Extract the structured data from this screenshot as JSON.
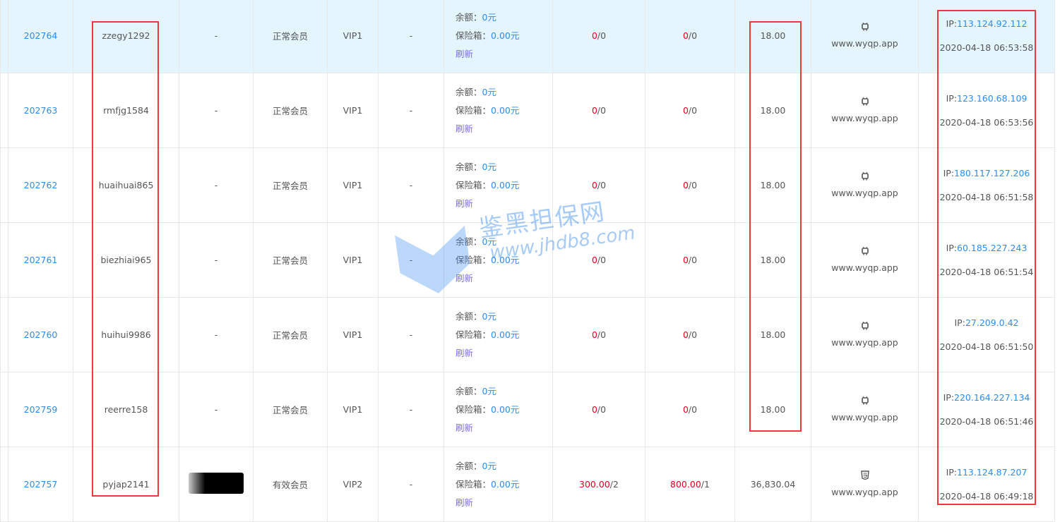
{
  "rows": [
    {
      "id": "202764",
      "username": "zzegy1292",
      "nickname": "-",
      "status": "正常会员",
      "level": "VIP1",
      "extra": "-",
      "balance_label": "余额：",
      "balance": "0元",
      "safe_label": "保险箱：",
      "safe": "0.00元",
      "refresh": "刷新",
      "recharge_red": "0",
      "recharge_rest": "/0",
      "withdraw_red": "0",
      "withdraw_rest": "/0",
      "amount": "18.00",
      "device_icon": "android-icon",
      "device_site": "www.wyqp.app",
      "ip_label": "IP:",
      "ip": "113.124.92.112",
      "time": "2020-04-18 06:53:58",
      "highlight": true
    },
    {
      "id": "202763",
      "username": "rmfjg1584",
      "nickname": "-",
      "status": "正常会员",
      "level": "VIP1",
      "extra": "-",
      "balance_label": "余额：",
      "balance": "0元",
      "safe_label": "保险箱：",
      "safe": "0.00元",
      "refresh": "刷新",
      "recharge_red": "0",
      "recharge_rest": "/0",
      "withdraw_red": "0",
      "withdraw_rest": "/0",
      "amount": "18.00",
      "device_icon": "android-icon",
      "device_site": "www.wyqp.app",
      "ip_label": "IP:",
      "ip": "123.160.68.109",
      "time": "2020-04-18 06:53:56"
    },
    {
      "id": "202762",
      "username": "huaihuai865",
      "nickname": "-",
      "status": "正常会员",
      "level": "VIP1",
      "extra": "-",
      "balance_label": "余额：",
      "balance": "0元",
      "safe_label": "保险箱：",
      "safe": "0.00元",
      "refresh": "刷新",
      "recharge_red": "0",
      "recharge_rest": "/0",
      "withdraw_red": "0",
      "withdraw_rest": "/0",
      "amount": "18.00",
      "device_icon": "android-icon",
      "device_site": "www.wyqp.app",
      "ip_label": "IP:",
      "ip": "180.117.127.206",
      "time": "2020-04-18 06:51:58"
    },
    {
      "id": "202761",
      "username": "biezhiai965",
      "nickname": "-",
      "status": "正常会员",
      "level": "VIP1",
      "extra": "-",
      "balance_label": "余额：",
      "balance": "0元",
      "safe_label": "保险箱：",
      "safe": "0.00元",
      "refresh": "刷新",
      "recharge_red": "0",
      "recharge_rest": "/0",
      "withdraw_red": "0",
      "withdraw_rest": "/0",
      "amount": "18.00",
      "device_icon": "android-icon",
      "device_site": "www.wyqp.app",
      "ip_label": "IP:",
      "ip": "60.185.227.243",
      "time": "2020-04-18 06:51:54"
    },
    {
      "id": "202760",
      "username": "huihui9986",
      "nickname": "-",
      "status": "正常会员",
      "level": "VIP1",
      "extra": "-",
      "balance_label": "余额：",
      "balance": "0元",
      "safe_label": "保险箱：",
      "safe": "0.00元",
      "refresh": "刷新",
      "recharge_red": "0",
      "recharge_rest": "/0",
      "withdraw_red": "0",
      "withdraw_rest": "/0",
      "amount": "18.00",
      "device_icon": "android-icon",
      "device_site": "www.wyqp.app",
      "ip_label": "IP:",
      "ip": "27.209.0.42",
      "time": "2020-04-18 06:51:50"
    },
    {
      "id": "202759",
      "username": "reerre158",
      "nickname": "-",
      "status": "正常会员",
      "level": "VIP1",
      "extra": "-",
      "balance_label": "余额：",
      "balance": "0元",
      "safe_label": "保险箱：",
      "safe": "0.00元",
      "refresh": "刷新",
      "recharge_red": "0",
      "recharge_rest": "/0",
      "withdraw_red": "0",
      "withdraw_rest": "/0",
      "amount": "18.00",
      "device_icon": "android-icon",
      "device_site": "www.wyqp.app",
      "ip_label": "IP:",
      "ip": "220.164.227.134",
      "time": "2020-04-18 06:51:46"
    },
    {
      "id": "202757",
      "username": "pyjap2141",
      "nickname": "",
      "avatar": true,
      "status": "有效会员",
      "level": "VIP2",
      "extra": "-",
      "balance_label": "余额：",
      "balance": "0元",
      "safe_label": "保险箱：",
      "safe": "0.00元",
      "refresh": "刷新",
      "recharge_red": "300.00",
      "recharge_rest": "/2",
      "withdraw_red": "800.00",
      "withdraw_rest": "/1",
      "amount": "36,830.04",
      "device_icon": "html5-icon",
      "device_site": "www.wyqp.app",
      "ip_label": "IP:",
      "ip": "113.124.87.207",
      "time": "2020-04-18 06:49:18"
    }
  ],
  "watermark": {
    "line1": "鉴黑担保网",
    "line2": "www.jhdb8.com"
  },
  "colors": {
    "link": "#2d8cf0",
    "red": "#e8001c",
    "highlight_row": "#e4f5fd",
    "annotation_box": "#f0373a"
  }
}
